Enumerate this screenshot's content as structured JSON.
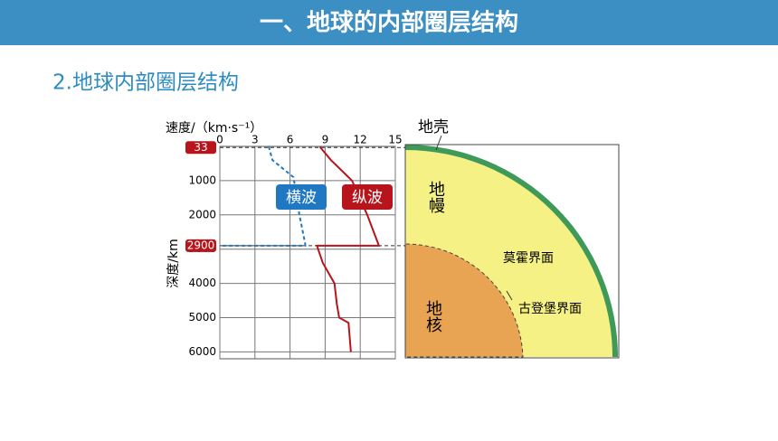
{
  "header": {
    "title": "一、地球的内部圈层结构"
  },
  "subtitle": "2.地球内部圈层结构",
  "chart_data": {
    "type": "line",
    "x_label": "速度/（km·s⁻¹）",
    "y_label": "深度/km",
    "xlim": [
      0,
      15
    ],
    "xticks": [
      0,
      3,
      6,
      9,
      12,
      15
    ],
    "ylim": [
      0,
      6200
    ],
    "yticks": [
      1000,
      2000,
      3000,
      4000,
      5000,
      6000
    ],
    "discontinuities": [
      33,
      2900
    ],
    "grid": true,
    "series": [
      {
        "name": "横波",
        "color": "#1f78c1",
        "dashed": true,
        "depth": [
          0,
          33,
          400,
          900,
          2000,
          2850,
          2900,
          2900
        ],
        "values": [
          4.2,
          4.2,
          4.5,
          6.3,
          6.8,
          7.3,
          7.3,
          0
        ]
      },
      {
        "name": "纵波",
        "color": "#b8141b",
        "dashed": false,
        "depth": [
          0,
          33,
          400,
          1000,
          2000,
          2900,
          2900,
          3400,
          4000,
          4600,
          5000,
          5150,
          6000
        ],
        "values": [
          8.6,
          8.6,
          9.5,
          11.3,
          12.6,
          13.6,
          8.3,
          8.8,
          9.8,
          10.0,
          10.2,
          11.0,
          11.2
        ]
      }
    ]
  },
  "diagram": {
    "crust": "地壳",
    "mantle": "地幔",
    "core": "地核",
    "moho": "莫霍界面",
    "gutenberg": "古登堡界面"
  }
}
